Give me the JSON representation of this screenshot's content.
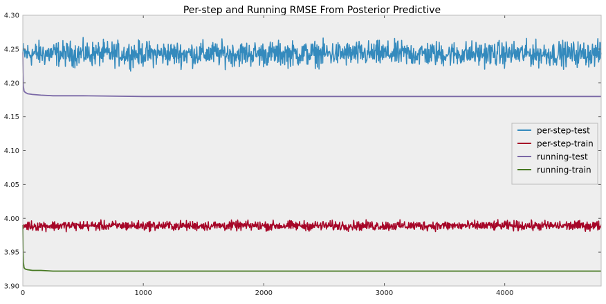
{
  "chart_data": {
    "type": "line",
    "title": "Per-step and Running RMSE From Posterior Predictive",
    "xlabel": "",
    "ylabel": "",
    "xlim": [
      0,
      4800
    ],
    "ylim": [
      3.9,
      4.3
    ],
    "x_ticks": [
      0,
      1000,
      2000,
      3000,
      4000
    ],
    "x_tick_labels": [
      "0",
      "1000",
      "2000",
      "3000",
      "4000"
    ],
    "y_ticks": [
      3.9,
      3.95,
      4.0,
      4.05,
      4.1,
      4.15,
      4.2,
      4.25,
      4.3
    ],
    "y_tick_labels": [
      "3.90",
      "3.95",
      "4.00",
      "4.05",
      "4.10",
      "4.15",
      "4.20",
      "4.25",
      "4.30"
    ],
    "grid": false,
    "background": "#eeeeee",
    "legend_position": "center-right",
    "series": [
      {
        "name": "per-step-test",
        "color": "#348abd",
        "noisy": true,
        "noise_amplitude": 0.009,
        "x": [
          0,
          4800
        ],
        "y": [
          4.243,
          4.243
        ]
      },
      {
        "name": "per-step-train",
        "color": "#a60628",
        "noisy": true,
        "noise_amplitude": 0.0035,
        "x": [
          0,
          4800
        ],
        "y": [
          3.989,
          3.989
        ]
      },
      {
        "name": "running-test",
        "color": "#7a68a6",
        "noisy": false,
        "x": [
          0,
          2,
          5,
          10,
          20,
          40,
          80,
          150,
          250,
          500,
          1000,
          2000,
          3000,
          4000,
          4800
        ],
        "y": [
          4.245,
          4.215,
          4.195,
          4.188,
          4.186,
          4.184,
          4.183,
          4.182,
          4.181,
          4.181,
          4.18,
          4.18,
          4.18,
          4.18,
          4.18
        ]
      },
      {
        "name": "running-train",
        "color": "#467821",
        "noisy": false,
        "x": [
          0,
          2,
          5,
          10,
          20,
          40,
          80,
          150,
          250,
          500,
          1000,
          2000,
          3000,
          4000,
          4800
        ],
        "y": [
          3.99,
          3.955,
          3.935,
          3.927,
          3.925,
          3.924,
          3.923,
          3.923,
          3.922,
          3.922,
          3.922,
          3.922,
          3.922,
          3.922,
          3.922
        ]
      }
    ]
  }
}
